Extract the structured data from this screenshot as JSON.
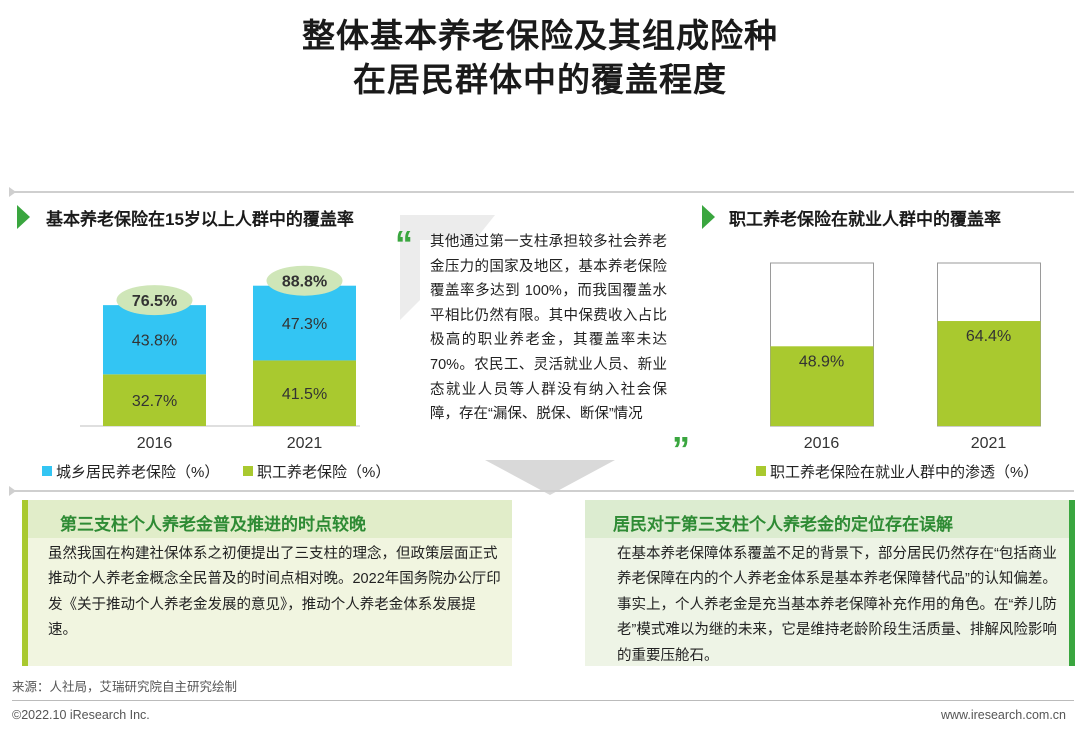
{
  "title": {
    "line1": "整体基本养老保险及其组成险种",
    "line2": "在居民群体中的覆盖程度"
  },
  "colors": {
    "urban_rural": "#33c5f3",
    "employee": "#a9c92f",
    "accent_green": "#3aa63f",
    "oval": "#cfe6b8"
  },
  "left_section": {
    "title": "基本养老保险在15岁以上人群中的覆盖率"
  },
  "right_section": {
    "title": "职工养老保险在就业人群中的覆盖率"
  },
  "chart_data": [
    {
      "type": "bar",
      "stacked": true,
      "categories": [
        "2016",
        "2021"
      ],
      "series": [
        {
          "name": "职工养老保险（%）",
          "values": [
            32.7,
            41.5
          ],
          "labels": [
            "32.7%",
            "41.5%"
          ],
          "color": "#a9c92f"
        },
        {
          "name": "城乡居民养老保险（%）",
          "values": [
            43.8,
            47.3
          ],
          "labels": [
            "43.8%",
            "47.3%"
          ],
          "color": "#33c5f3"
        }
      ],
      "totals": [
        76.5,
        88.8
      ],
      "total_labels": [
        "76.5%",
        "88.8%"
      ],
      "ylim": [
        0,
        100
      ],
      "legend": "bottom",
      "grid": false
    },
    {
      "type": "bar",
      "categories": [
        "2016",
        "2021"
      ],
      "series": [
        {
          "name": "职工养老保险在就业人群中的渗透（%）",
          "values": [
            48.9,
            64.4
          ],
          "labels": [
            "48.9%",
            "64.4%"
          ],
          "color": "#a9c92f"
        }
      ],
      "ylim": [
        0,
        100
      ],
      "legend": "bottom",
      "grid": false
    }
  ],
  "quote": {
    "open": "“",
    "close": "”",
    "text": "其他通过第一支柱承担较多社会养老金压力的国家及地区，基本养老保险覆盖率多达到 100%，而我国覆盖水平相比仍然有限。其中保费收入占比极高的职业养老金，其覆盖率未达70%。农民工、灵活就业人员、新业态就业人员等人群没有纳入社会保障，存在“漏保、脱保、断保”情况"
  },
  "box_left": {
    "title": "第三支柱个人养老金普及推进的时点较晚",
    "text": "虽然我国在构建社保体系之初便提出了三支柱的理念，但政策层面正式推动个人养老金概念全民普及的时间点相对晚。2022年国务院办公厅印发《关于推动个人养老金发展的意见》，推动个人养老金体系发展提速。"
  },
  "box_right": {
    "title": "居民对于第三支柱个人养老金的定位存在误解",
    "text": "在基本养老保障体系覆盖不足的背景下，部分居民仍然存在“包括商业养老保障在内的个人养老金体系是基本养老保障替代品”的认知偏差。事实上，个人养老金是充当基本养老保障补充作用的角色。在“养儿防老”模式难以为继的未来，它是维持老龄阶段生活质量、排解风险影响的重要压舱石。"
  },
  "source": "来源：人社局，艾瑞研究院自主研究绘制",
  "footer": {
    "copyright": "©2022.10 iResearch Inc.",
    "url": "www.iresearch.com.cn"
  }
}
